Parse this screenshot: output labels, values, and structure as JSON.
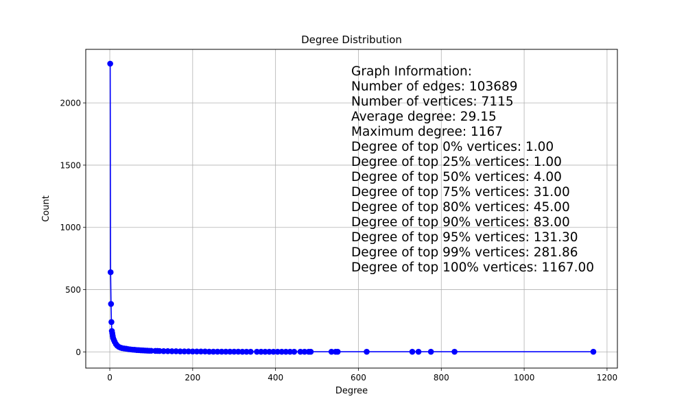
{
  "chart_data": {
    "type": "line",
    "title": "Degree Distribution",
    "xlabel": "Degree",
    "ylabel": "Count",
    "xlim": [
      -58,
      1225
    ],
    "ylim": [
      -130,
      2430
    ],
    "xticks": [
      0,
      200,
      400,
      600,
      800,
      1000,
      1200
    ],
    "yticks": [
      0,
      500,
      1000,
      1500,
      2000
    ],
    "grid": true,
    "marker": "circle",
    "series": [
      {
        "color": "#0000ff",
        "points": [
          [
            1,
            2315
          ],
          [
            2,
            640
          ],
          [
            3,
            385
          ],
          [
            4,
            240
          ],
          [
            5,
            168
          ],
          [
            6,
            150
          ],
          [
            7,
            130
          ],
          [
            8,
            112
          ],
          [
            10,
            95
          ],
          [
            12,
            80
          ],
          [
            15,
            62
          ],
          [
            18,
            50
          ],
          [
            22,
            40
          ],
          [
            26,
            34
          ],
          [
            30,
            30
          ],
          [
            35,
            27
          ],
          [
            40,
            25
          ],
          [
            45,
            22
          ],
          [
            50,
            20
          ],
          [
            55,
            18
          ],
          [
            60,
            17
          ],
          [
            65,
            15
          ],
          [
            70,
            14
          ],
          [
            75,
            13
          ],
          [
            80,
            12
          ],
          [
            85,
            11
          ],
          [
            90,
            10
          ],
          [
            95,
            9
          ],
          [
            100,
            9
          ],
          [
            110,
            8
          ],
          [
            115,
            8
          ],
          [
            120,
            7
          ],
          [
            130,
            6
          ],
          [
            140,
            6
          ],
          [
            150,
            5
          ],
          [
            160,
            5
          ],
          [
            170,
            4
          ],
          [
            180,
            4
          ],
          [
            190,
            4
          ],
          [
            200,
            3
          ],
          [
            210,
            3
          ],
          [
            220,
            3
          ],
          [
            230,
            3
          ],
          [
            240,
            2
          ],
          [
            250,
            2
          ],
          [
            260,
            2
          ],
          [
            270,
            2
          ],
          [
            280,
            2
          ],
          [
            290,
            2
          ],
          [
            300,
            2
          ],
          [
            310,
            2
          ],
          [
            320,
            1
          ],
          [
            330,
            1
          ],
          [
            340,
            1
          ],
          [
            355,
            1
          ],
          [
            365,
            1
          ],
          [
            375,
            1
          ],
          [
            385,
            1
          ],
          [
            395,
            1
          ],
          [
            405,
            1
          ],
          [
            415,
            1
          ],
          [
            425,
            1
          ],
          [
            435,
            1
          ],
          [
            445,
            1
          ],
          [
            460,
            1
          ],
          [
            470,
            1
          ],
          [
            480,
            1
          ],
          [
            485,
            1
          ],
          [
            535,
            1
          ],
          [
            545,
            1
          ],
          [
            550,
            1
          ],
          [
            620,
            1
          ],
          [
            730,
            1
          ],
          [
            745,
            1
          ],
          [
            775,
            1
          ],
          [
            832,
            1
          ],
          [
            1167,
            1
          ]
        ]
      }
    ],
    "annotation": {
      "lines": [
        "Graph Information:",
        "Number of edges: 103689",
        "Number of vertices: 7115",
        "Average degree: 29.15",
        "Maximum degree: 1167",
        "Degree of top 0% vertices: 1.00",
        "Degree of top 25% vertices: 1.00",
        "Degree of top 50% vertices: 4.00",
        "Degree of top 75% vertices: 31.00",
        "Degree of top 80% vertices: 45.00",
        "Degree of top 90% vertices: 83.00",
        "Degree of top 95% vertices: 131.30",
        "Degree of top 99% vertices: 281.86",
        "Degree of top 100% vertices: 1167.00"
      ]
    }
  }
}
